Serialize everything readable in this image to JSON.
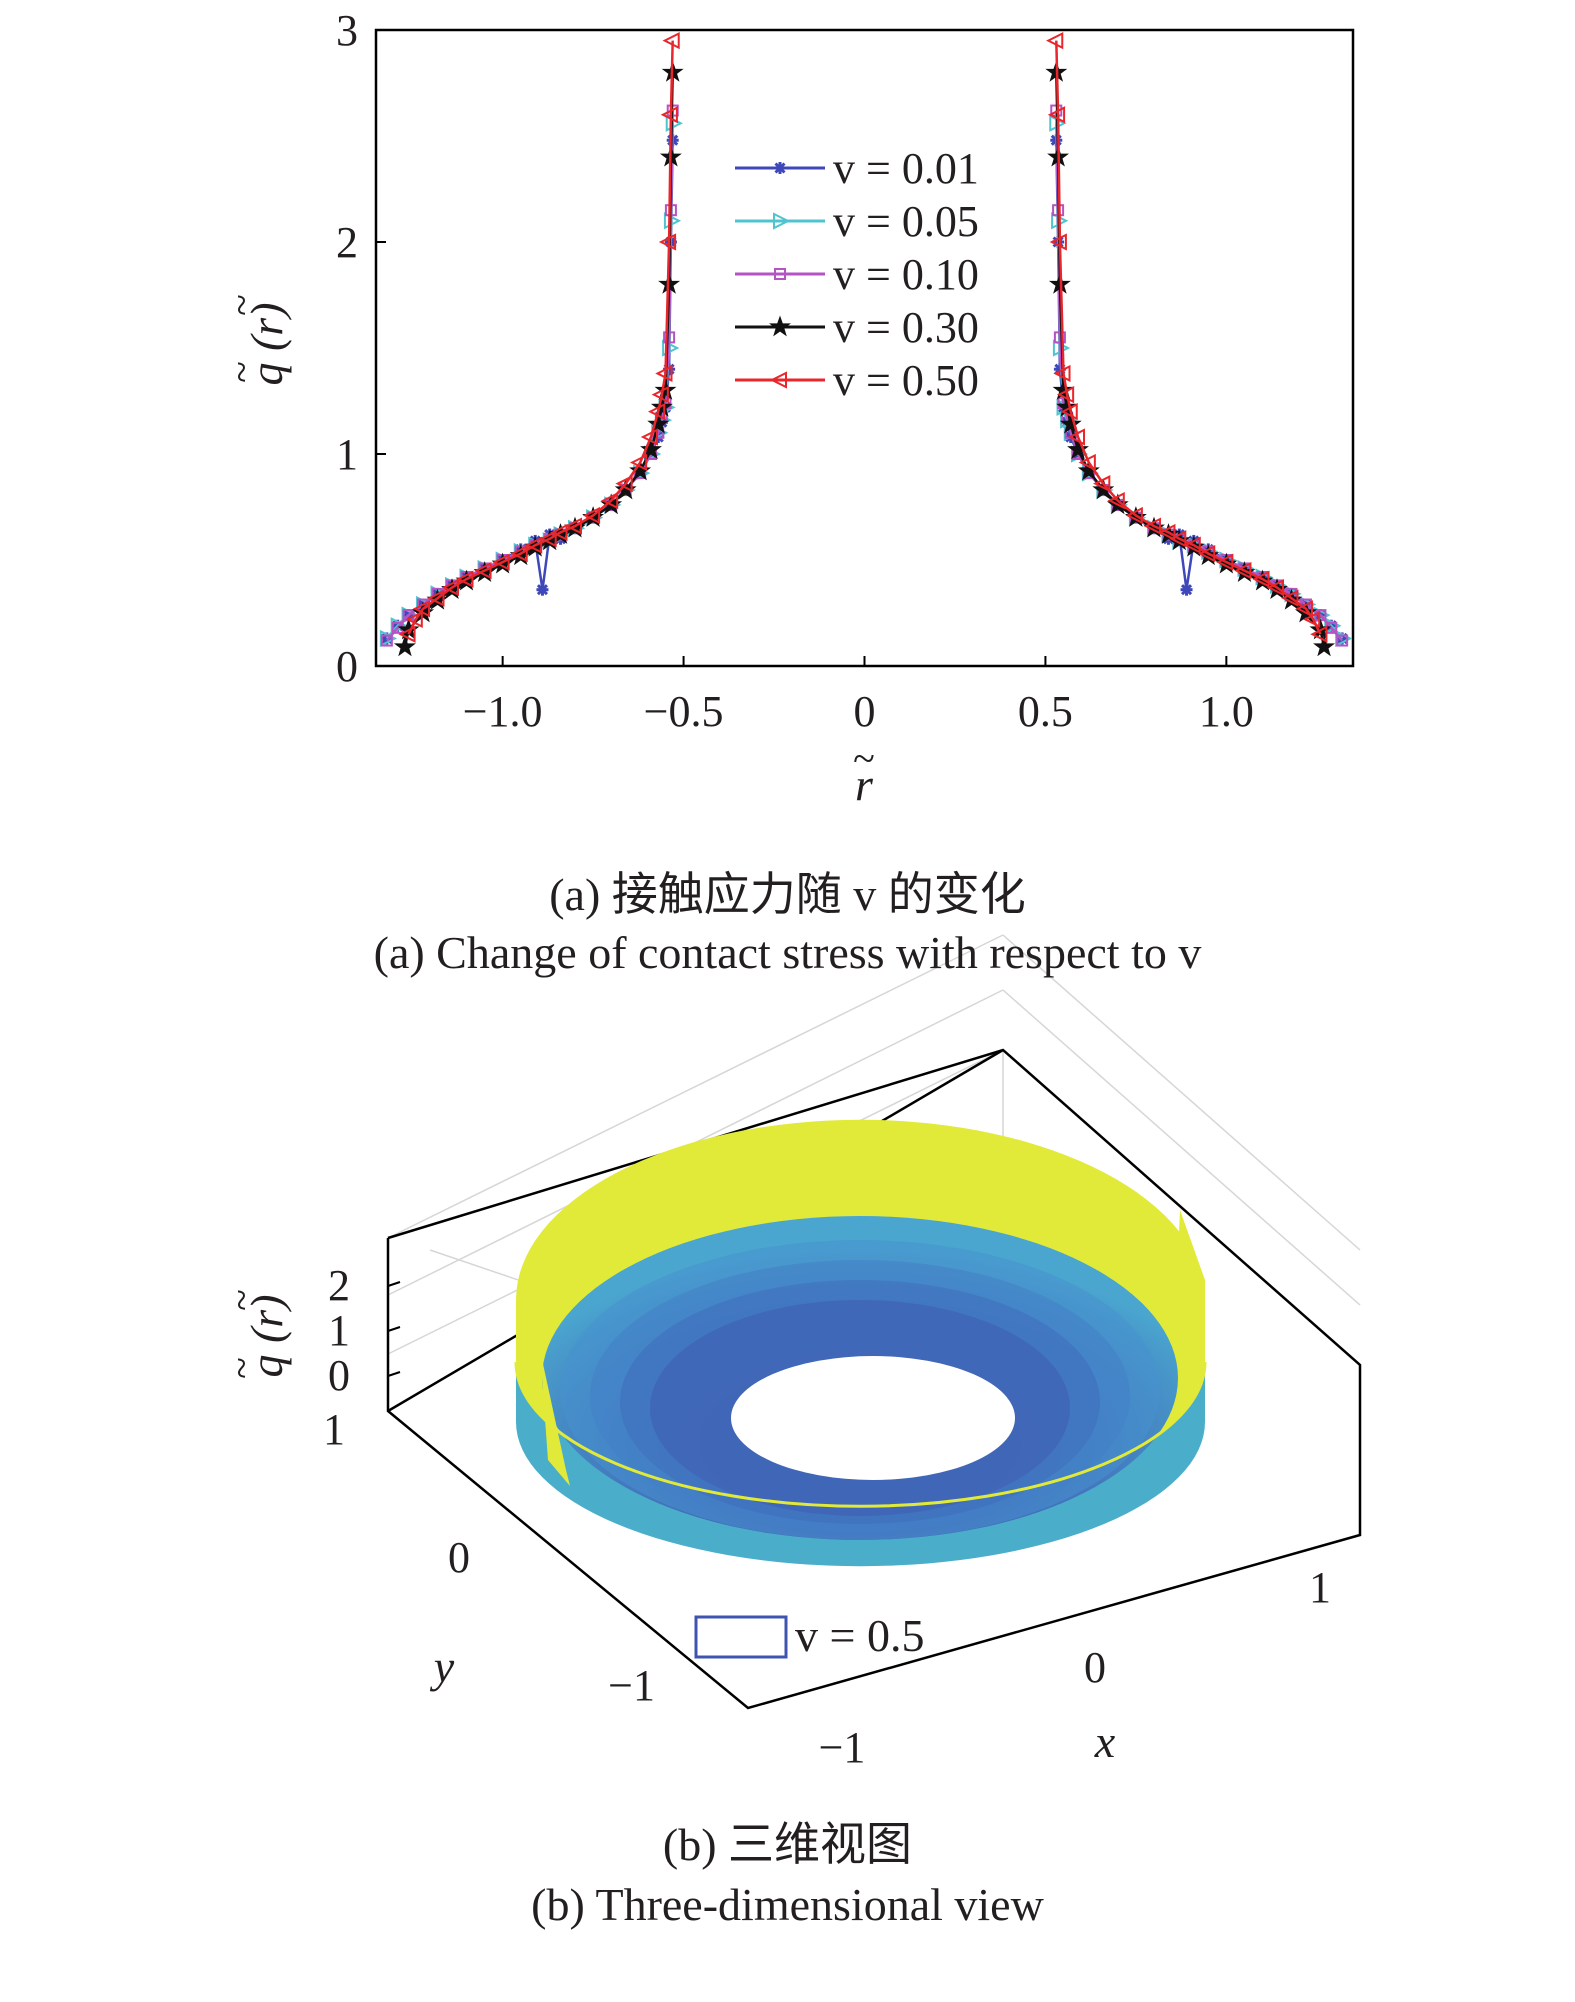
{
  "chart_data": [
    {
      "type": "line",
      "panel": "a",
      "xlabel": "r",
      "ylabel": "q (r)",
      "xlim": [
        -1.35,
        1.35
      ],
      "ylim": [
        0,
        3
      ],
      "x_ticks": [
        -1.0,
        -0.5,
        0,
        0.5,
        1.0
      ],
      "x_tick_labels": [
        "−1.0",
        "−0.5",
        "0",
        "0.5",
        "1.0"
      ],
      "y_ticks": [
        0,
        1,
        2,
        3
      ],
      "y_tick_labels": [
        "0",
        "1",
        "2",
        "3"
      ],
      "legend_position": "top-center",
      "grid": false,
      "series": [
        {
          "name": "v = 0.01",
          "color": "#3f48b8",
          "marker": "asterisk",
          "x": [
            -1.32,
            -1.29,
            -1.26,
            -1.22,
            -1.18,
            -1.14,
            -1.1,
            -1.05,
            -1.0,
            -0.95,
            -0.91,
            -0.89,
            -0.87,
            -0.84,
            -0.8,
            -0.75,
            -0.7,
            -0.66,
            -0.62,
            -0.59,
            -0.57,
            -0.56,
            -0.55,
            -0.54,
            -0.535,
            -0.53,
            0.53,
            0.535,
            0.54,
            0.55,
            0.56,
            0.57,
            0.59,
            0.62,
            0.66,
            0.7,
            0.75,
            0.8,
            0.84,
            0.87,
            0.89,
            0.91,
            0.95,
            1.0,
            1.05,
            1.1,
            1.14,
            1.18,
            1.22,
            1.26,
            1.29,
            1.32
          ],
          "y": [
            0.13,
            0.19,
            0.24,
            0.29,
            0.34,
            0.38,
            0.42,
            0.46,
            0.5,
            0.55,
            0.59,
            0.36,
            0.62,
            0.6,
            0.65,
            0.7,
            0.76,
            0.83,
            0.91,
            1.0,
            1.08,
            1.15,
            1.22,
            1.4,
            2.0,
            2.48,
            2.48,
            2.0,
            1.4,
            1.22,
            1.15,
            1.08,
            1.0,
            0.91,
            0.83,
            0.76,
            0.7,
            0.65,
            0.6,
            0.62,
            0.36,
            0.59,
            0.55,
            0.5,
            0.46,
            0.42,
            0.38,
            0.34,
            0.29,
            0.24,
            0.19,
            0.13
          ]
        },
        {
          "name": "v = 0.05",
          "color": "#4fc4cf",
          "marker": "triangle-right",
          "x": [
            -1.32,
            -1.29,
            -1.26,
            -1.22,
            -1.18,
            -1.14,
            -1.1,
            -1.05,
            -1.0,
            -0.95,
            -0.91,
            -0.87,
            -0.84,
            -0.8,
            -0.75,
            -0.7,
            -0.66,
            -0.62,
            -0.59,
            -0.57,
            -0.56,
            -0.55,
            -0.54,
            -0.535,
            -0.53,
            0.53,
            0.535,
            0.54,
            0.55,
            0.56,
            0.57,
            0.59,
            0.62,
            0.66,
            0.7,
            0.75,
            0.8,
            0.84,
            0.87,
            0.91,
            0.95,
            1.0,
            1.05,
            1.1,
            1.14,
            1.18,
            1.22,
            1.26,
            1.29,
            1.32
          ],
          "y": [
            0.13,
            0.19,
            0.24,
            0.29,
            0.34,
            0.38,
            0.42,
            0.46,
            0.5,
            0.54,
            0.57,
            0.59,
            0.62,
            0.65,
            0.7,
            0.76,
            0.83,
            0.91,
            1.0,
            1.1,
            1.16,
            1.22,
            1.5,
            2.1,
            2.56,
            2.56,
            2.1,
            1.5,
            1.22,
            1.16,
            1.1,
            1.0,
            0.91,
            0.83,
            0.76,
            0.7,
            0.65,
            0.62,
            0.59,
            0.57,
            0.54,
            0.5,
            0.46,
            0.42,
            0.38,
            0.34,
            0.29,
            0.24,
            0.19,
            0.13
          ]
        },
        {
          "name": "v = 0.10",
          "color": "#b552c4",
          "marker": "square",
          "x": [
            -1.32,
            -1.29,
            -1.26,
            -1.22,
            -1.18,
            -1.14,
            -1.1,
            -1.05,
            -1.0,
            -0.95,
            -0.91,
            -0.87,
            -0.84,
            -0.8,
            -0.75,
            -0.7,
            -0.66,
            -0.62,
            -0.59,
            -0.57,
            -0.56,
            -0.55,
            -0.54,
            -0.535,
            -0.53,
            0.53,
            0.535,
            0.54,
            0.55,
            0.56,
            0.57,
            0.59,
            0.62,
            0.66,
            0.7,
            0.75,
            0.8,
            0.84,
            0.87,
            0.91,
            0.95,
            1.0,
            1.05,
            1.1,
            1.14,
            1.18,
            1.22,
            1.26,
            1.29,
            1.32
          ],
          "y": [
            0.12,
            0.18,
            0.24,
            0.29,
            0.34,
            0.38,
            0.42,
            0.46,
            0.5,
            0.54,
            0.57,
            0.6,
            0.62,
            0.65,
            0.7,
            0.76,
            0.83,
            0.91,
            1.0,
            1.1,
            1.17,
            1.24,
            1.55,
            2.15,
            2.62,
            2.62,
            2.15,
            1.55,
            1.24,
            1.17,
            1.1,
            1.0,
            0.91,
            0.83,
            0.76,
            0.7,
            0.65,
            0.62,
            0.6,
            0.57,
            0.54,
            0.5,
            0.46,
            0.42,
            0.38,
            0.34,
            0.29,
            0.24,
            0.18,
            0.12
          ]
        },
        {
          "name": "v = 0.30",
          "color": "#111111",
          "marker": "star",
          "x": [
            -1.27,
            -1.26,
            -1.22,
            -1.18,
            -1.14,
            -1.1,
            -1.05,
            -1.0,
            -0.95,
            -0.91,
            -0.87,
            -0.84,
            -0.8,
            -0.75,
            -0.7,
            -0.66,
            -0.62,
            -0.59,
            -0.57,
            -0.56,
            -0.55,
            -0.54,
            -0.535,
            -0.53,
            0.53,
            0.535,
            0.54,
            0.55,
            0.56,
            0.57,
            0.59,
            0.62,
            0.66,
            0.7,
            0.75,
            0.8,
            0.84,
            0.87,
            0.91,
            0.95,
            1.0,
            1.05,
            1.1,
            1.14,
            1.18,
            1.22,
            1.26,
            1.27
          ],
          "y": [
            0.09,
            0.17,
            0.25,
            0.31,
            0.36,
            0.4,
            0.44,
            0.48,
            0.52,
            0.56,
            0.59,
            0.62,
            0.65,
            0.7,
            0.76,
            0.83,
            0.92,
            1.02,
            1.14,
            1.22,
            1.3,
            1.8,
            2.4,
            2.8,
            2.8,
            2.4,
            1.8,
            1.3,
            1.22,
            1.14,
            1.02,
            0.92,
            0.83,
            0.76,
            0.7,
            0.65,
            0.62,
            0.59,
            0.56,
            0.52,
            0.48,
            0.44,
            0.4,
            0.36,
            0.31,
            0.25,
            0.17,
            0.09
          ]
        },
        {
          "name": "v = 0.50",
          "color": "#e8262b",
          "marker": "triangle-left",
          "x": [
            -1.26,
            -1.24,
            -1.22,
            -1.18,
            -1.14,
            -1.1,
            -1.05,
            -1.0,
            -0.95,
            -0.91,
            -0.87,
            -0.84,
            -0.8,
            -0.75,
            -0.7,
            -0.66,
            -0.62,
            -0.59,
            -0.57,
            -0.56,
            -0.55,
            -0.54,
            -0.535,
            -0.53,
            0.53,
            0.535,
            0.54,
            0.55,
            0.56,
            0.57,
            0.59,
            0.62,
            0.66,
            0.7,
            0.75,
            0.8,
            0.84,
            0.87,
            0.91,
            0.95,
            1.0,
            1.05,
            1.1,
            1.14,
            1.18,
            1.22,
            1.24,
            1.26
          ],
          "y": [
            0.15,
            0.22,
            0.27,
            0.32,
            0.37,
            0.41,
            0.45,
            0.49,
            0.53,
            0.57,
            0.6,
            0.63,
            0.66,
            0.71,
            0.78,
            0.86,
            0.96,
            1.08,
            1.2,
            1.28,
            1.38,
            2.0,
            2.6,
            2.95,
            2.95,
            2.6,
            2.0,
            1.38,
            1.28,
            1.2,
            1.08,
            0.96,
            0.86,
            0.78,
            0.71,
            0.66,
            0.63,
            0.6,
            0.57,
            0.53,
            0.49,
            0.45,
            0.41,
            0.37,
            0.32,
            0.27,
            0.22,
            0.15
          ]
        }
      ]
    },
    {
      "type": "surface",
      "panel": "b",
      "xlabel": "x",
      "ylabel": "y",
      "zlabel": "q (r)",
      "x_ticks": [
        -1,
        0,
        1
      ],
      "x_tick_labels": [
        "−1",
        "0",
        "1"
      ],
      "y_ticks": [
        -1,
        0,
        1
      ],
      "y_tick_labels": [
        "−1",
        "0",
        "1"
      ],
      "z_ticks": [
        0,
        1,
        2
      ],
      "z_tick_labels": [
        "0",
        "1",
        "2"
      ],
      "inner_radius": 0.53,
      "outer_radius": 1.26,
      "legend": "v = 0.5",
      "legend_color": "#3f54b0",
      "colors": {
        "inner": "#3f3f9f",
        "mid": "#3e7fc6",
        "side": "#4aaecb",
        "top": "#e1ea39"
      }
    }
  ],
  "captions": {
    "a_cn": "(a) 接触应力随 v 的变化",
    "a_en": "(a) Change of contact stress with respect to v",
    "b_cn": "(b) 三维视图",
    "b_en": "(b) Three-dimensional view"
  }
}
